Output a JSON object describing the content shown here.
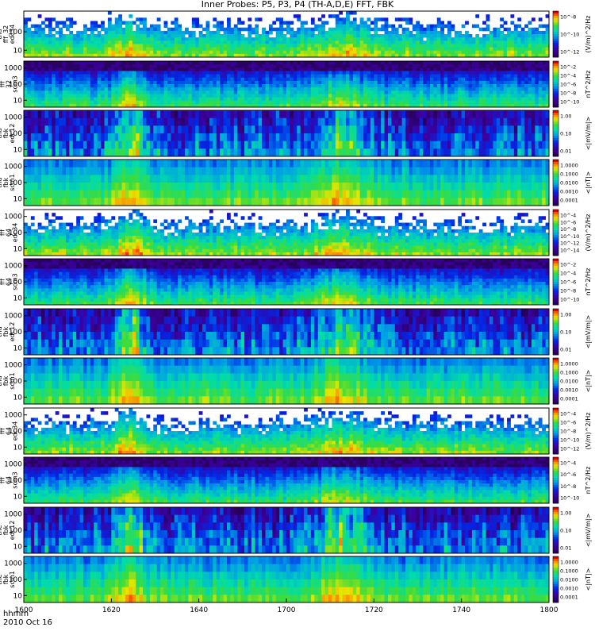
{
  "chart_data": {
    "type": "heatmap",
    "title": "Inner Probes: P5, P3, P4 (TH-A,D,E) FFT, FBK",
    "footer": [
      "hhmm",
      "2010 Oct 16"
    ],
    "x_ticks": [
      "1600",
      "1620",
      "1640",
      "1700",
      "1720",
      "1740",
      "1800"
    ],
    "panels": [
      {
        "ylabel": [
          "tha",
          "fff_32",
          "edc34"
        ],
        "yticks": [
          "100",
          "10"
        ],
        "cticks": [
          "10^-8",
          "10^-10",
          "10^-12"
        ],
        "cunit": "(V/m)^2/Hz",
        "kind": "fft_e"
      },
      {
        "ylabel": [
          "tha",
          "fff",
          "32",
          "scm3"
        ],
        "yticks": [
          "1000",
          "100",
          "10"
        ],
        "cticks": [
          "10^-2",
          "10^-4",
          "10^-6",
          "10^-8",
          "10^-10"
        ],
        "cunit": "nT^2/Hz",
        "kind": "fft_b"
      },
      {
        "ylabel": [
          "tha",
          "fbk",
          "edc12"
        ],
        "yticks": [
          "1000",
          "100",
          "10"
        ],
        "cticks": [
          "1.00",
          "0.10",
          "0.01"
        ],
        "cunit": "<|mV/m|>",
        "kind": "fbk_e"
      },
      {
        "ylabel": [
          "tha",
          "fbk",
          "scm1"
        ],
        "yticks": [
          "1000",
          "100",
          "10"
        ],
        "cticks": [
          "1.0000",
          "0.1000",
          "0.0100",
          "0.0010",
          "0.0001"
        ],
        "cunit": "<|nT|>",
        "kind": "fbk_b"
      },
      {
        "ylabel": [
          "thd",
          "fff",
          "64",
          "edc34"
        ],
        "yticks": [
          "1000",
          "100",
          "10"
        ],
        "cticks": [
          "10^-4",
          "10^-6",
          "10^-8",
          "10^-10",
          "10^-12",
          "10^-14"
        ],
        "cunit": "(V/m)^2/Hz",
        "kind": "fft_e"
      },
      {
        "ylabel": [
          "thd",
          "fff",
          "64",
          "scm3"
        ],
        "yticks": [
          "1000",
          "100",
          "10"
        ],
        "cticks": [
          "10^-2",
          "10^-4",
          "10^-6",
          "10^-8",
          "10^-10"
        ],
        "cunit": "nT^2/Hz",
        "kind": "fft_b"
      },
      {
        "ylabel": [
          "thd",
          "fbk",
          "edc12"
        ],
        "yticks": [
          "1000",
          "100",
          "10"
        ],
        "cticks": [
          "1.00",
          "0.10",
          "0.01"
        ],
        "cunit": "<|mV/m|>",
        "kind": "fbk_e"
      },
      {
        "ylabel": [
          "thd",
          "fbk",
          "scm1"
        ],
        "yticks": [
          "1000",
          "100",
          "10"
        ],
        "cticks": [
          "1.0000",
          "0.1000",
          "0.0100",
          "0.0010",
          "0.0001"
        ],
        "cunit": "<|nT|>",
        "kind": "fbk_b"
      },
      {
        "ylabel": [
          "the",
          "fff",
          "64",
          "edc34"
        ],
        "yticks": [
          "1000",
          "100",
          "10"
        ],
        "cticks": [
          "10^-4",
          "10^-6",
          "10^-8",
          "10^-10",
          "10^-12"
        ],
        "cunit": "(V/m)^2/Hz",
        "kind": "fft_e"
      },
      {
        "ylabel": [
          "the",
          "fff",
          "64",
          "scm3"
        ],
        "yticks": [
          "1000",
          "100",
          "10"
        ],
        "cticks": [
          "10^-4",
          "10^-6",
          "10^-8",
          "10^-10"
        ],
        "cunit": "nT^2/Hz",
        "kind": "fft_b"
      },
      {
        "ylabel": [
          "the",
          "fbk",
          "edc12"
        ],
        "yticks": [
          "1000",
          "100",
          "10"
        ],
        "cticks": [
          "1.00",
          "0.10",
          "0.01"
        ],
        "cunit": "<|mV/m|>",
        "kind": "fbk_e"
      },
      {
        "ylabel": [
          "the",
          "fbk",
          "scm1"
        ],
        "yticks": [
          "1000",
          "100",
          "10"
        ],
        "cticks": [
          "1.0000",
          "0.1000",
          "0.0100",
          "0.0010",
          "0.0001"
        ],
        "cunit": "<|nT|>",
        "kind": "fbk_b"
      }
    ]
  }
}
